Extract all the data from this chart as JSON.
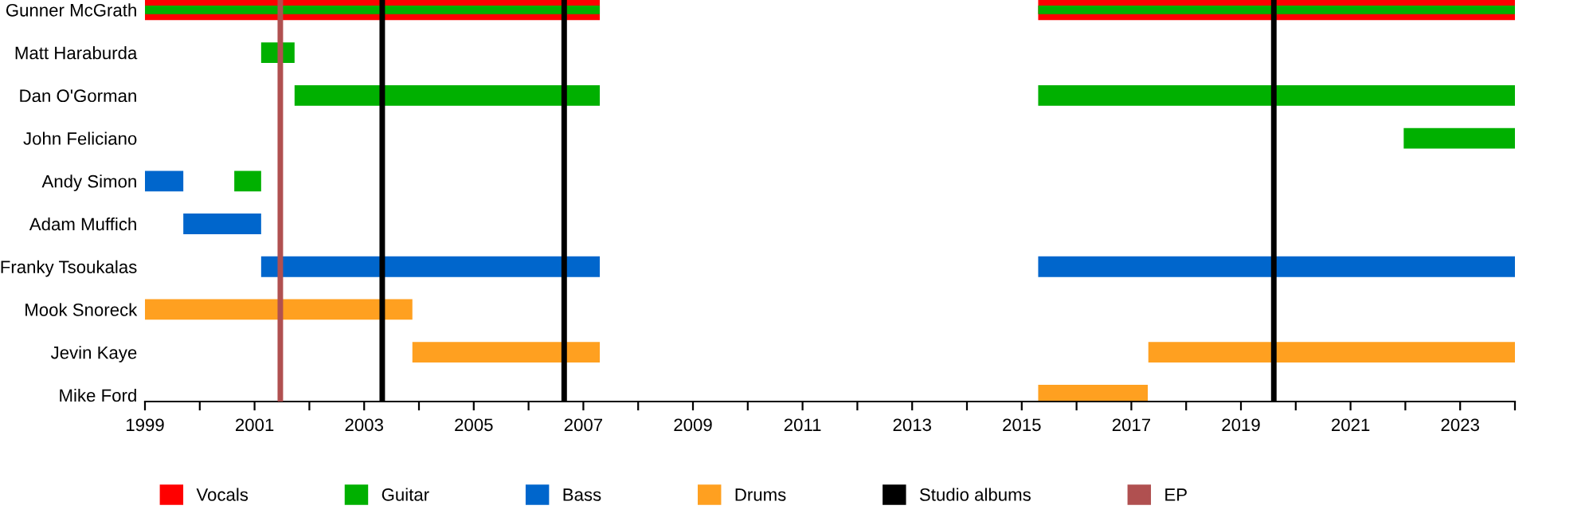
{
  "chart_data": {
    "type": "bar",
    "orientation": "horizontal",
    "legend": "bottom",
    "grid": false,
    "categories": [
      "Gunner McGrath",
      "Matt Haraburda",
      "Dan O'Gorman",
      "John Feliciano",
      "Andy Simon",
      "Adam Muffich",
      "Franky Tsoukalas",
      "Mook Snoreck",
      "Jevin Kaye",
      "Mike Ford"
    ],
    "series": [
      {
        "name": "Vocals",
        "color": "#ff0000",
        "base": [
          1999,
          null,
          null,
          null,
          null,
          null,
          null,
          null,
          null,
          null
        ],
        "values": [
          8.3,
          null,
          null,
          null,
          null,
          null,
          null,
          null,
          null,
          null
        ]
      },
      {
        "color": "#ff0000",
        "base": [
          2015.3,
          null,
          null,
          null,
          null,
          null,
          null,
          null,
          null,
          null
        ],
        "values": [
          8.7,
          null,
          null,
          null,
          null,
          null,
          null,
          null,
          null,
          null
        ]
      },
      {
        "name": "Guitar",
        "color": "#00b000",
        "base": [
          1999,
          2001.12,
          2001.73,
          null,
          2000.63,
          null,
          null,
          null,
          null,
          null
        ],
        "values": [
          8.3,
          0.61,
          5.57,
          null,
          0.49,
          null,
          null,
          null,
          null,
          null
        ]
      },
      {
        "color": "#00b000",
        "base": [
          2015.3,
          null,
          2015.3,
          2021.97,
          null,
          null,
          null,
          null,
          null,
          null
        ],
        "values": [
          8.7,
          null,
          8.7,
          2.03,
          null,
          null,
          null,
          null,
          null,
          null
        ]
      },
      {
        "name": "Bass",
        "color": "#0066cc",
        "base": [
          null,
          null,
          null,
          null,
          1999,
          1999.7,
          2001.12,
          null,
          null,
          null
        ],
        "values": [
          null,
          null,
          null,
          null,
          0.7,
          1.42,
          6.18,
          null,
          null,
          null
        ]
      },
      {
        "color": "#0066cc",
        "base": [
          null,
          null,
          null,
          null,
          null,
          null,
          2015.3,
          null,
          null,
          null
        ],
        "values": [
          null,
          null,
          null,
          null,
          null,
          null,
          8.7,
          null,
          null,
          null
        ]
      },
      {
        "name": "Drums",
        "color": "#ffa020",
        "base": [
          null,
          null,
          null,
          null,
          null,
          null,
          null,
          1999,
          2003.88,
          2015.3
        ],
        "values": [
          null,
          null,
          null,
          null,
          null,
          null,
          null,
          4.88,
          3.42,
          2.0
        ]
      },
      {
        "color": "#ffa020",
        "base": [
          null,
          null,
          null,
          null,
          null,
          null,
          null,
          null,
          2017.31,
          null
        ],
        "values": [
          null,
          null,
          null,
          null,
          null,
          null,
          null,
          null,
          6.69,
          null
        ]
      }
    ],
    "ref_lines": [
      {
        "axis": "x",
        "value": 2003.33,
        "label": "Studio albums",
        "color": "#000000"
      },
      {
        "axis": "x",
        "value": 2006.65,
        "color": "#000000"
      },
      {
        "axis": "x",
        "value": 2019.6,
        "color": "#000000"
      },
      {
        "axis": "x",
        "value": 2001.47,
        "label": "EP",
        "color": "#b05050"
      }
    ],
    "xlim": [
      1999,
      2024
    ],
    "xticks": [
      1999,
      {
        "value": 2000,
        "label": null
      },
      2001,
      {
        "value": 2002,
        "label": null
      },
      2003,
      {
        "value": 2004,
        "label": null
      },
      2005,
      {
        "value": 2006,
        "label": null
      },
      2007,
      {
        "value": 2008,
        "label": null
      },
      2009,
      {
        "value": 2010,
        "label": null
      },
      2011,
      {
        "value": 2012,
        "label": null
      },
      2013,
      {
        "value": 2014,
        "label": null
      },
      2015,
      {
        "value": 2016,
        "label": null
      },
      2017,
      {
        "value": 2018,
        "label": null
      },
      2019,
      {
        "value": 2020,
        "label": null
      },
      2021,
      {
        "value": 2022,
        "label": null
      },
      2023,
      {
        "value": 2024,
        "label": null
      }
    ]
  }
}
